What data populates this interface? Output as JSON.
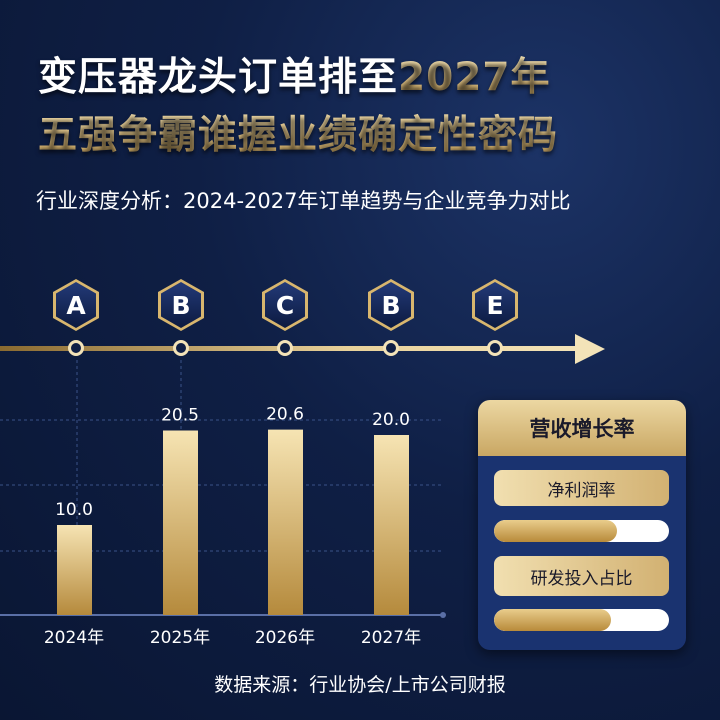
{
  "title": {
    "line1_white": "变压器龙头订单排至",
    "line1_gold": "2027年",
    "line2": "五强争霸谁握业绩确定性密码"
  },
  "subtitle": "行业深度分析：2024-2027年订单趋势与企业竞争力对比",
  "timeline": {
    "letters": [
      "A",
      "B",
      "C",
      "B",
      "E"
    ]
  },
  "chart_data": {
    "type": "bar",
    "categories": [
      "2024年",
      "2025年",
      "2026年",
      "2027年"
    ],
    "values": [
      10.0,
      20.5,
      20.6,
      20.0
    ],
    "value_labels": [
      "10.0",
      "20.5",
      "20.6",
      "20.0"
    ],
    "grid": true,
    "bar_color": "#d9bb7a"
  },
  "panel": {
    "header": "营收增长率",
    "items": [
      {
        "label": "净利润率",
        "progress": 0.7
      },
      {
        "label": "研发投入占比",
        "progress": 0.67
      }
    ]
  },
  "source": "数据来源：行业协会/上市公司财报",
  "colors": {
    "background": "#0f1f45",
    "gold": "#d9bb7a",
    "panel": "#1a3370"
  }
}
